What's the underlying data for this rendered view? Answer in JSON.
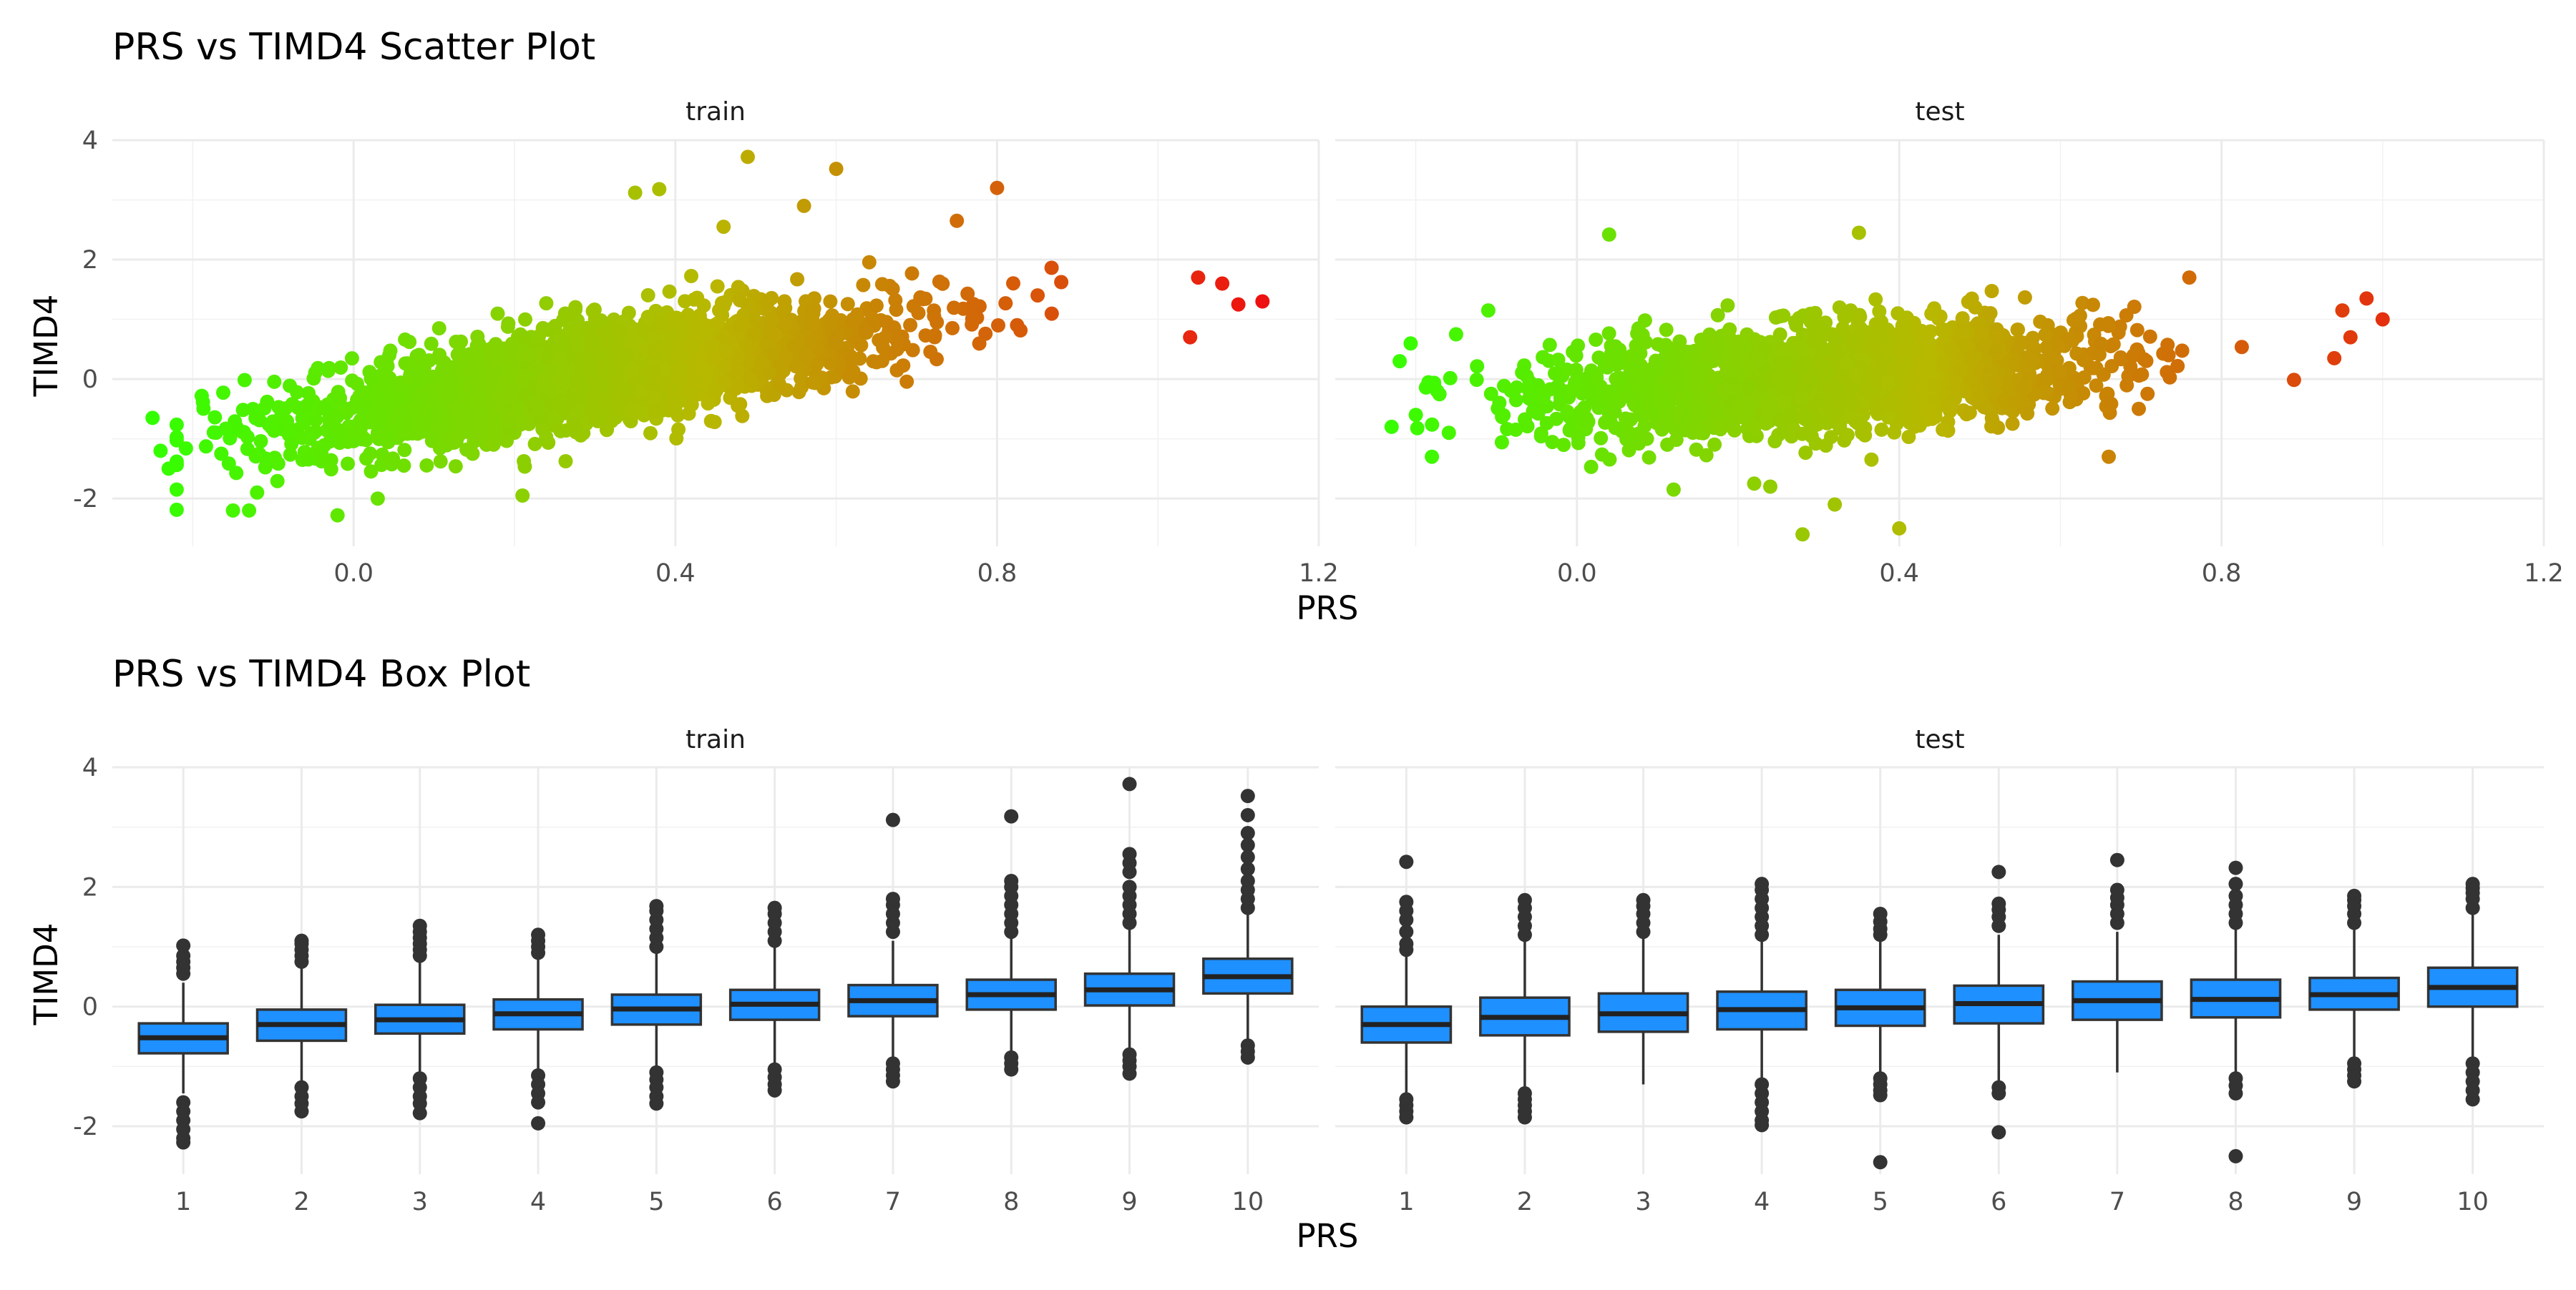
{
  "chart_data": [
    {
      "type": "scatter",
      "title": "PRS vs TIMD4 Scatter Plot",
      "xlabel": "PRS",
      "ylabel": "TIMD4",
      "facets": [
        "train",
        "test"
      ],
      "xlim": [
        -0.3,
        1.2
      ],
      "ylim": [
        -2.8,
        4
      ],
      "x_ticks": [
        "0.0",
        "0.4",
        "0.8",
        "1.2"
      ],
      "y_ticks": [
        "-2",
        "0",
        "2",
        "4"
      ],
      "color_scale": {
        "low": "#33ff00",
        "mid": "#b8b800",
        "high": "#ee1111",
        "mapped_to": "PRS"
      },
      "panels": [
        {
          "facet": "train",
          "trend": {
            "slope": 2.1,
            "intercept": -0.55,
            "x_range": [
              -0.25,
              1.13
            ]
          },
          "points_outliers": [
            [
              0.49,
              3.72
            ],
            [
              0.6,
              3.52
            ],
            [
              0.38,
              3.18
            ],
            [
              0.35,
              3.12
            ],
            [
              0.8,
              3.2
            ],
            [
              0.56,
              2.9
            ],
            [
              0.75,
              2.65
            ],
            [
              0.46,
              2.55
            ],
            [
              1.13,
              1.3
            ],
            [
              1.05,
              1.7
            ],
            [
              1.08,
              1.6
            ],
            [
              1.1,
              1.25
            ],
            [
              1.04,
              0.7
            ],
            [
              -0.25,
              -0.65
            ],
            [
              -0.24,
              -1.2
            ],
            [
              -0.23,
              -1.5
            ],
            [
              -0.22,
              -1.85
            ],
            [
              -0.15,
              -2.2
            ],
            [
              -0.13,
              -2.2
            ],
            [
              -0.02,
              -2.28
            ],
            [
              0.03,
              -2.0
            ],
            [
              0.21,
              -1.95
            ],
            [
              -0.12,
              -1.9
            ]
          ]
        },
        {
          "facet": "test",
          "trend": {
            "slope": 0.9,
            "intercept": -0.25,
            "x_range": [
              -0.24,
              1.01
            ]
          },
          "points_outliers": [
            [
              0.04,
              2.42
            ],
            [
              0.35,
              2.45
            ],
            [
              0.28,
              -2.6
            ],
            [
              0.4,
              -2.5
            ],
            [
              0.32,
              -2.1
            ],
            [
              0.24,
              -1.8
            ],
            [
              0.98,
              1.35
            ],
            [
              1.0,
              1.0
            ],
            [
              0.96,
              0.7
            ],
            [
              0.95,
              1.15
            ],
            [
              0.94,
              0.35
            ],
            [
              0.76,
              1.7
            ],
            [
              -0.23,
              -0.8
            ],
            [
              -0.2,
              -0.6
            ],
            [
              -0.18,
              -1.3
            ],
            [
              -0.22,
              0.3
            ],
            [
              -0.15,
              0.75
            ],
            [
              -0.11,
              1.15
            ],
            [
              0.12,
              -1.85
            ],
            [
              0.22,
              -1.75
            ],
            [
              0.66,
              -1.3
            ]
          ]
        }
      ]
    },
    {
      "type": "box",
      "title": "PRS vs TIMD4 Box Plot",
      "xlabel": "PRS",
      "ylabel": "TIMD4",
      "facets": [
        "train",
        "test"
      ],
      "categories": [
        "1",
        "2",
        "3",
        "4",
        "5",
        "6",
        "7",
        "8",
        "9",
        "10"
      ],
      "ylim": [
        -2.8,
        4
      ],
      "y_ticks": [
        "-2",
        "0",
        "2",
        "4"
      ],
      "box_fill": "#1e90ff",
      "panels": [
        {
          "facet": "train",
          "boxes": [
            {
              "q1": -0.78,
              "median": -0.52,
              "q3": -0.28,
              "wmin": -1.45,
              "wmax": 0.4,
              "outliers": [
                -1.6,
                -1.75,
                -1.9,
                -2.05,
                -2.2,
                -2.27,
                0.55,
                0.65,
                0.75,
                0.85,
                1.02
              ]
            },
            {
              "q1": -0.57,
              "median": -0.3,
              "q3": -0.05,
              "wmin": -1.25,
              "wmax": 0.65,
              "outliers": [
                -1.35,
                -1.5,
                -1.62,
                -1.75,
                0.75,
                0.85,
                0.95,
                1.05,
                1.1
              ]
            },
            {
              "q1": -0.45,
              "median": -0.22,
              "q3": 0.03,
              "wmin": -1.1,
              "wmax": 0.75,
              "outliers": [
                -1.2,
                -1.35,
                -1.5,
                -1.62,
                -1.78,
                0.85,
                0.95,
                1.05,
                1.15,
                1.25,
                1.35
              ]
            },
            {
              "q1": -0.38,
              "median": -0.12,
              "q3": 0.12,
              "wmin": -1.05,
              "wmax": 0.82,
              "outliers": [
                -1.15,
                -1.3,
                -1.45,
                -1.6,
                -1.95,
                0.9,
                1.0,
                1.1,
                1.2
              ]
            },
            {
              "q1": -0.3,
              "median": -0.04,
              "q3": 0.2,
              "wmin": -1.0,
              "wmax": 0.92,
              "outliers": [
                -1.1,
                -1.22,
                -1.35,
                -1.5,
                -1.62,
                1.0,
                1.15,
                1.3,
                1.45,
                1.6,
                1.68
              ]
            },
            {
              "q1": -0.22,
              "median": 0.04,
              "q3": 0.28,
              "wmin": -0.95,
              "wmax": 1.0,
              "outliers": [
                -1.05,
                -1.18,
                -1.3,
                -1.4,
                1.1,
                1.25,
                1.4,
                1.55,
                1.65
              ]
            },
            {
              "q1": -0.16,
              "median": 0.1,
              "q3": 0.36,
              "wmin": -0.85,
              "wmax": 1.1,
              "outliers": [
                -0.95,
                -1.05,
                -1.15,
                -1.25,
                1.25,
                1.4,
                1.55,
                1.7,
                1.8,
                3.12
              ]
            },
            {
              "q1": -0.05,
              "median": 0.2,
              "q3": 0.45,
              "wmin": -0.75,
              "wmax": 1.15,
              "outliers": [
                -0.85,
                -0.95,
                -1.05,
                1.25,
                1.4,
                1.55,
                1.7,
                1.85,
                2.0,
                2.1,
                3.18
              ]
            },
            {
              "q1": 0.02,
              "median": 0.28,
              "q3": 0.55,
              "wmin": -0.7,
              "wmax": 1.3,
              "outliers": [
                -0.8,
                -0.9,
                -1.0,
                -1.12,
                1.4,
                1.55,
                1.7,
                1.85,
                2.0,
                2.25,
                2.4,
                2.55,
                3.72
              ]
            },
            {
              "q1": 0.22,
              "median": 0.5,
              "q3": 0.8,
              "wmin": -0.55,
              "wmax": 1.55,
              "outliers": [
                -0.65,
                -0.75,
                -0.85,
                1.65,
                1.8,
                1.95,
                2.1,
                2.3,
                2.5,
                2.7,
                2.9,
                3.2,
                3.52
              ]
            }
          ]
        },
        {
          "facet": "test",
          "boxes": [
            {
              "q1": -0.6,
              "median": -0.3,
              "q3": 0.0,
              "wmin": -1.45,
              "wmax": 0.85,
              "outliers": [
                -1.55,
                -1.65,
                -1.75,
                -1.85,
                0.95,
                1.05,
                1.25,
                1.45,
                1.6,
                1.75,
                2.42
              ]
            },
            {
              "q1": -0.48,
              "median": -0.18,
              "q3": 0.15,
              "wmin": -1.35,
              "wmax": 1.1,
              "outliers": [
                -1.45,
                -1.55,
                -1.65,
                -1.75,
                -1.85,
                1.2,
                1.35,
                1.5,
                1.65,
                1.78
              ]
            },
            {
              "q1": -0.42,
              "median": -0.12,
              "q3": 0.22,
              "wmin": -1.3,
              "wmax": 1.15,
              "outliers": [
                1.25,
                1.4,
                1.55,
                1.68,
                1.78
              ]
            },
            {
              "q1": -0.38,
              "median": -0.05,
              "q3": 0.25,
              "wmin": -1.2,
              "wmax": 1.1,
              "outliers": [
                -1.3,
                -1.45,
                -1.6,
                -1.75,
                -1.9,
                -1.98,
                1.2,
                1.35,
                1.5,
                1.65,
                1.8,
                1.95,
                2.05
              ]
            },
            {
              "q1": -0.32,
              "median": -0.02,
              "q3": 0.28,
              "wmin": -1.1,
              "wmax": 1.1,
              "outliers": [
                -1.2,
                -1.3,
                -1.4,
                -1.48,
                -2.6,
                1.2,
                1.3,
                1.42,
                1.55
              ]
            },
            {
              "q1": -0.28,
              "median": 0.05,
              "q3": 0.35,
              "wmin": -1.25,
              "wmax": 1.2,
              "outliers": [
                -1.35,
                -1.45,
                -2.1,
                1.35,
                1.5,
                1.62,
                1.72,
                2.25
              ]
            },
            {
              "q1": -0.22,
              "median": 0.1,
              "q3": 0.42,
              "wmin": -1.1,
              "wmax": 1.25,
              "outliers": [
                1.4,
                1.55,
                1.7,
                1.82,
                1.95,
                2.45
              ]
            },
            {
              "q1": -0.18,
              "median": 0.12,
              "q3": 0.45,
              "wmin": -1.1,
              "wmax": 1.3,
              "outliers": [
                -1.2,
                -1.32,
                -1.45,
                -2.5,
                1.4,
                1.55,
                1.7,
                1.85,
                2.05,
                2.32
              ]
            },
            {
              "q1": -0.05,
              "median": 0.2,
              "q3": 0.48,
              "wmin": -0.85,
              "wmax": 1.3,
              "outliers": [
                -0.95,
                -1.05,
                -1.15,
                -1.25,
                1.4,
                1.55,
                1.68,
                1.78,
                1.85
              ]
            },
            {
              "q1": 0.0,
              "median": 0.32,
              "q3": 0.65,
              "wmin": -0.85,
              "wmax": 1.55,
              "outliers": [
                -0.95,
                -1.1,
                -1.25,
                -1.4,
                -1.55,
                1.65,
                1.8,
                1.9,
                1.98,
                2.05
              ]
            }
          ]
        }
      ]
    }
  ]
}
